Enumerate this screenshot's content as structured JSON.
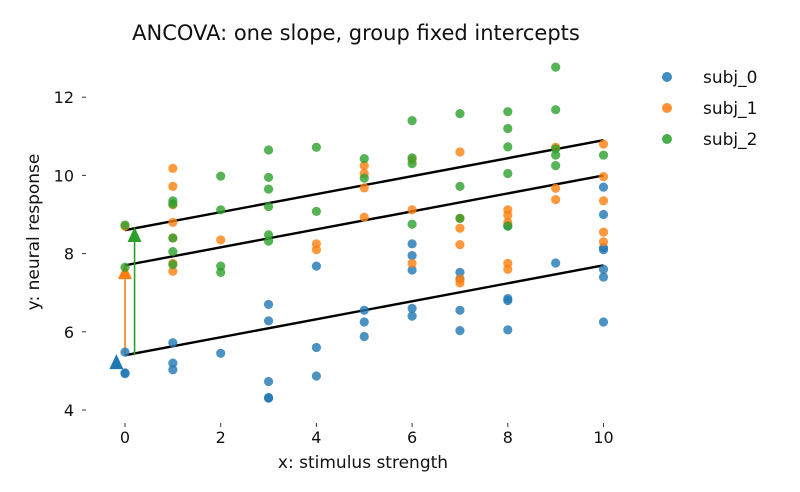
{
  "chart_data": {
    "type": "scatter",
    "title": "ANCOVA: one slope, group fixed intercepts",
    "xlabel": "x: stimulus strength",
    "ylabel": "y: neural response",
    "xlim": [
      -0.6,
      10.6
    ],
    "ylim": [
      4.0,
      13.0
    ],
    "xticks": [
      "0",
      "2",
      "4",
      "6",
      "8",
      "10"
    ],
    "yticks": [
      "4",
      "6",
      "8",
      "10",
      "12"
    ],
    "grid": false,
    "legend_position": "top-right, outside plot",
    "slope": 0.23,
    "series": [
      {
        "name": "subj_0",
        "color": "#1f77b4",
        "intercept": 5.4,
        "marker_y": 5.2,
        "points": [
          [
            0,
            4.93
          ],
          [
            0,
            4.95
          ],
          [
            0,
            5.48
          ],
          [
            1,
            5.03
          ],
          [
            1,
            5.2
          ],
          [
            1,
            5.72
          ],
          [
            2,
            5.45
          ],
          [
            3,
            4.3
          ],
          [
            3,
            4.32
          ],
          [
            3,
            4.73
          ],
          [
            3,
            6.28
          ],
          [
            3,
            6.7
          ],
          [
            4,
            4.87
          ],
          [
            4,
            5.6
          ],
          [
            4,
            7.68
          ],
          [
            5,
            5.88
          ],
          [
            5,
            6.25
          ],
          [
            5,
            6.55
          ],
          [
            6,
            6.4
          ],
          [
            6,
            6.6
          ],
          [
            6,
            7.58
          ],
          [
            6,
            7.95
          ],
          [
            6,
            8.25
          ],
          [
            7,
            6.03
          ],
          [
            7,
            6.55
          ],
          [
            7,
            7.35
          ],
          [
            7,
            7.52
          ],
          [
            8,
            6.05
          ],
          [
            8,
            6.8
          ],
          [
            8,
            6.85
          ],
          [
            8,
            8.72
          ],
          [
            9,
            7.76
          ],
          [
            10,
            6.25
          ],
          [
            10,
            7.4
          ],
          [
            10,
            7.6
          ],
          [
            10,
            8.1
          ],
          [
            10,
            8.15
          ],
          [
            10,
            9.0
          ],
          [
            10,
            9.7
          ]
        ]
      },
      {
        "name": "subj_1",
        "color": "#ff7f0e",
        "intercept": 7.7,
        "marker_y": 7.5,
        "points": [
          [
            0,
            8.7
          ],
          [
            1,
            7.55
          ],
          [
            1,
            7.75
          ],
          [
            1,
            8.4
          ],
          [
            1,
            8.8
          ],
          [
            1,
            9.25
          ],
          [
            1,
            9.72
          ],
          [
            1,
            10.18
          ],
          [
            2,
            8.35
          ],
          [
            4,
            8.1
          ],
          [
            4,
            8.25
          ],
          [
            5,
            8.93
          ],
          [
            5,
            9.68
          ],
          [
            5,
            10.05
          ],
          [
            5,
            10.25
          ],
          [
            6,
            7.75
          ],
          [
            6,
            9.12
          ],
          [
            6,
            10.4
          ],
          [
            7,
            7.25
          ],
          [
            7,
            7.35
          ],
          [
            7,
            8.23
          ],
          [
            7,
            8.65
          ],
          [
            7,
            8.9
          ],
          [
            7,
            10.6
          ],
          [
            8,
            7.6
          ],
          [
            8,
            7.75
          ],
          [
            8,
            8.8
          ],
          [
            8,
            8.98
          ],
          [
            8,
            9.12
          ],
          [
            9,
            9.38
          ],
          [
            9,
            9.67
          ],
          [
            9,
            10.72
          ],
          [
            10,
            8.3
          ],
          [
            10,
            8.55
          ],
          [
            10,
            9.35
          ],
          [
            10,
            9.97
          ],
          [
            10,
            10.8
          ]
        ]
      },
      {
        "name": "subj_2",
        "color": "#2ca02c",
        "intercept": 8.6,
        "marker_y": 8.45,
        "points": [
          [
            0,
            7.65
          ],
          [
            0,
            8.73
          ],
          [
            1,
            7.72
          ],
          [
            1,
            8.05
          ],
          [
            1,
            8.4
          ],
          [
            1,
            9.27
          ],
          [
            1,
            9.35
          ],
          [
            2,
            7.52
          ],
          [
            2,
            7.68
          ],
          [
            2,
            9.12
          ],
          [
            2,
            9.98
          ],
          [
            3,
            8.32
          ],
          [
            3,
            8.48
          ],
          [
            3,
            9.2
          ],
          [
            3,
            9.65
          ],
          [
            3,
            9.95
          ],
          [
            3,
            10.65
          ],
          [
            4,
            9.08
          ],
          [
            4,
            10.72
          ],
          [
            5,
            9.93
          ],
          [
            5,
            10.43
          ],
          [
            6,
            8.75
          ],
          [
            6,
            10.3
          ],
          [
            6,
            10.45
          ],
          [
            6,
            11.4
          ],
          [
            7,
            8.9
          ],
          [
            7,
            9.72
          ],
          [
            7,
            11.58
          ],
          [
            8,
            8.7
          ],
          [
            8,
            10.05
          ],
          [
            8,
            10.73
          ],
          [
            8,
            11.2
          ],
          [
            8,
            11.63
          ],
          [
            9,
            10.25
          ],
          [
            9,
            10.52
          ],
          [
            9,
            10.68
          ],
          [
            9,
            11.68
          ],
          [
            9,
            12.77
          ],
          [
            10,
            10.52
          ]
        ]
      }
    ]
  }
}
